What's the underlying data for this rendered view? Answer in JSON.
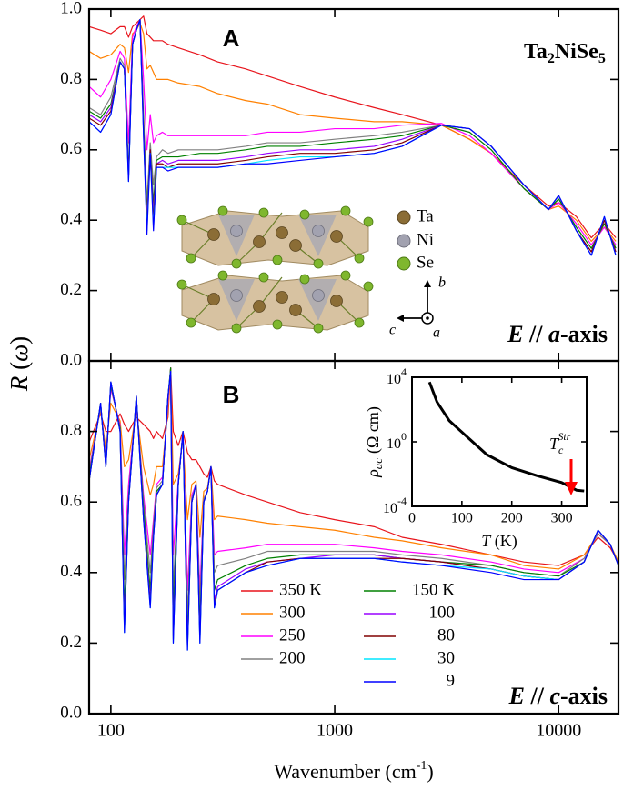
{
  "chart_data": [
    {
      "type": "line",
      "title": "A",
      "compound": [
        "Ta",
        "2",
        "NiSe",
        "5"
      ],
      "annotation": [
        "E",
        " // ",
        "a",
        "-axis"
      ],
      "ylabel": [
        "R",
        " (",
        "ω",
        ")"
      ],
      "structure_legend": [
        "Ta",
        "Ni",
        "Se"
      ],
      "structure_axes": [
        "b",
        "c",
        "a"
      ],
      "xscale": "log",
      "x": [
        80,
        90,
        100,
        110,
        115,
        120,
        125,
        130,
        135,
        140,
        145,
        150,
        155,
        160,
        170,
        180,
        200,
        250,
        300,
        400,
        500,
        700,
        1000,
        1500,
        2000,
        3000,
        4000,
        5000,
        7000,
        9000,
        10000,
        12000,
        14000,
        16000,
        18000
      ],
      "xlim": [
        80,
        18500
      ],
      "xticks": [
        100,
        1000,
        10000
      ],
      "ylim": [
        0,
        1.0
      ],
      "yticks": [
        {
          "value": 0,
          "label": "0.0"
        },
        {
          "value": 0.2,
          "label": "0.2"
        },
        {
          "value": 0.4,
          "label": "0.4"
        },
        {
          "value": 0.6,
          "label": "0.6"
        },
        {
          "value": 0.8,
          "label": "0.8"
        },
        {
          "value": 1.0,
          "label": "1.0"
        }
      ],
      "series": [
        {
          "color": "#e8141c",
          "values": [
            0.95,
            0.94,
            0.93,
            0.95,
            0.95,
            0.92,
            0.95,
            0.96,
            0.97,
            0.98,
            0.93,
            0.92,
            0.91,
            0.91,
            0.91,
            0.9,
            0.89,
            0.87,
            0.85,
            0.83,
            0.81,
            0.78,
            0.75,
            0.72,
            0.7,
            0.67,
            0.63,
            0.59,
            0.5,
            0.44,
            0.45,
            0.41,
            0.35,
            0.39,
            0.35
          ]
        },
        {
          "color": "#ff8000",
          "values": [
            0.88,
            0.86,
            0.87,
            0.9,
            0.89,
            0.82,
            0.93,
            0.94,
            0.96,
            0.93,
            0.83,
            0.84,
            0.82,
            0.8,
            0.8,
            0.8,
            0.79,
            0.78,
            0.76,
            0.74,
            0.73,
            0.7,
            0.69,
            0.68,
            0.68,
            0.67,
            0.63,
            0.59,
            0.49,
            0.43,
            0.44,
            0.4,
            0.34,
            0.38,
            0.34
          ]
        },
        {
          "color": "#ff00ff",
          "values": [
            0.78,
            0.75,
            0.8,
            0.88,
            0.86,
            0.62,
            0.92,
            0.95,
            0.97,
            0.8,
            0.6,
            0.7,
            0.62,
            0.64,
            0.65,
            0.64,
            0.64,
            0.64,
            0.64,
            0.64,
            0.65,
            0.65,
            0.66,
            0.66,
            0.67,
            0.675,
            0.64,
            0.59,
            0.49,
            0.43,
            0.45,
            0.39,
            0.33,
            0.38,
            0.33
          ]
        },
        {
          "color": "#808080",
          "values": [
            0.72,
            0.7,
            0.75,
            0.86,
            0.84,
            0.55,
            0.9,
            0.94,
            0.97,
            0.7,
            0.45,
            0.62,
            0.5,
            0.58,
            0.6,
            0.59,
            0.6,
            0.6,
            0.6,
            0.61,
            0.62,
            0.62,
            0.63,
            0.64,
            0.65,
            0.67,
            0.65,
            0.6,
            0.49,
            0.43,
            0.46,
            0.38,
            0.32,
            0.39,
            0.32
          ]
        },
        {
          "color": "#008000",
          "values": [
            0.71,
            0.69,
            0.73,
            0.85,
            0.83,
            0.53,
            0.9,
            0.94,
            0.97,
            0.68,
            0.42,
            0.6,
            0.45,
            0.57,
            0.58,
            0.58,
            0.58,
            0.59,
            0.59,
            0.6,
            0.61,
            0.61,
            0.62,
            0.63,
            0.64,
            0.67,
            0.65,
            0.6,
            0.49,
            0.43,
            0.46,
            0.38,
            0.32,
            0.39,
            0.32
          ]
        },
        {
          "color": "#9900ff",
          "values": [
            0.7,
            0.68,
            0.72,
            0.85,
            0.83,
            0.52,
            0.9,
            0.94,
            0.97,
            0.66,
            0.4,
            0.6,
            0.42,
            0.56,
            0.57,
            0.56,
            0.57,
            0.57,
            0.57,
            0.58,
            0.59,
            0.6,
            0.6,
            0.61,
            0.63,
            0.67,
            0.66,
            0.61,
            0.5,
            0.43,
            0.47,
            0.37,
            0.31,
            0.4,
            0.31
          ]
        },
        {
          "color": "#800000",
          "values": [
            0.69,
            0.67,
            0.71,
            0.85,
            0.83,
            0.52,
            0.9,
            0.94,
            0.97,
            0.65,
            0.38,
            0.6,
            0.4,
            0.56,
            0.56,
            0.55,
            0.56,
            0.56,
            0.56,
            0.57,
            0.58,
            0.59,
            0.59,
            0.6,
            0.62,
            0.67,
            0.66,
            0.61,
            0.5,
            0.43,
            0.47,
            0.37,
            0.31,
            0.4,
            0.31
          ]
        },
        {
          "color": "#00e5ff",
          "values": [
            0.68,
            0.65,
            0.7,
            0.85,
            0.83,
            0.51,
            0.9,
            0.94,
            0.97,
            0.64,
            0.37,
            0.59,
            0.38,
            0.55,
            0.55,
            0.55,
            0.55,
            0.55,
            0.55,
            0.56,
            0.57,
            0.58,
            0.58,
            0.59,
            0.61,
            0.67,
            0.66,
            0.61,
            0.5,
            0.43,
            0.47,
            0.37,
            0.3,
            0.41,
            0.3
          ]
        },
        {
          "color": "#0000ff",
          "values": [
            0.68,
            0.65,
            0.7,
            0.85,
            0.83,
            0.51,
            0.9,
            0.94,
            0.97,
            0.64,
            0.36,
            0.59,
            0.37,
            0.55,
            0.55,
            0.54,
            0.55,
            0.55,
            0.55,
            0.56,
            0.56,
            0.57,
            0.58,
            0.59,
            0.61,
            0.67,
            0.66,
            0.61,
            0.5,
            0.43,
            0.47,
            0.37,
            0.3,
            0.41,
            0.3
          ]
        }
      ]
    },
    {
      "type": "line",
      "title": "B",
      "annotation": [
        "E",
        " // ",
        "c",
        "-axis"
      ],
      "xlabel": [
        "Wavenumber (cm",
        "-1",
        ")"
      ],
      "xscale": "log",
      "x": [
        80,
        90,
        95,
        100,
        110,
        115,
        120,
        130,
        140,
        150,
        155,
        160,
        170,
        180,
        185,
        190,
        200,
        210,
        220,
        230,
        240,
        250,
        260,
        270,
        280,
        290,
        300,
        400,
        500,
        700,
        1000,
        1500,
        2000,
        3000,
        5000,
        7000,
        10000,
        13000,
        15000,
        17000,
        18500
      ],
      "xlim": [
        80,
        18500
      ],
      "xticks": [
        100,
        1000,
        10000
      ],
      "ylim": [
        0,
        1.0
      ],
      "yticks": [
        {
          "value": 0,
          "label": "0.0"
        },
        {
          "value": 0.2,
          "label": "0.2"
        },
        {
          "value": 0.4,
          "label": "0.4"
        },
        {
          "value": 0.6,
          "label": "0.6"
        },
        {
          "value": 0.8,
          "label": "0.8"
        }
      ],
      "series": [
        {
          "name": "350 K",
          "color": "#e8141c",
          "values": [
            0.77,
            0.85,
            0.8,
            0.8,
            0.85,
            0.82,
            0.8,
            0.84,
            0.82,
            0.8,
            0.78,
            0.8,
            0.78,
            0.84,
            0.98,
            0.8,
            0.76,
            0.8,
            0.74,
            0.72,
            0.72,
            0.7,
            0.68,
            0.67,
            0.7,
            0.66,
            0.65,
            0.62,
            0.6,
            0.57,
            0.55,
            0.53,
            0.5,
            0.48,
            0.45,
            0.43,
            0.42,
            0.45,
            0.5,
            0.47,
            0.43
          ]
        },
        {
          "name": "300",
          "color": "#ff8000",
          "values": [
            0.72,
            0.86,
            0.75,
            0.88,
            0.83,
            0.7,
            0.72,
            0.86,
            0.7,
            0.62,
            0.65,
            0.7,
            0.7,
            0.86,
            0.98,
            0.65,
            0.68,
            0.78,
            0.55,
            0.65,
            0.66,
            0.5,
            0.63,
            0.64,
            0.7,
            0.55,
            0.56,
            0.55,
            0.54,
            0.53,
            0.52,
            0.5,
            0.49,
            0.47,
            0.45,
            0.42,
            0.41,
            0.45,
            0.51,
            0.48,
            0.43
          ]
        },
        {
          "name": "250",
          "color": "#ff00ff",
          "values": [
            0.69,
            0.87,
            0.72,
            0.92,
            0.82,
            0.45,
            0.65,
            0.88,
            0.62,
            0.45,
            0.55,
            0.65,
            0.67,
            0.88,
            0.98,
            0.45,
            0.66,
            0.8,
            0.35,
            0.62,
            0.65,
            0.35,
            0.61,
            0.63,
            0.7,
            0.45,
            0.46,
            0.47,
            0.48,
            0.48,
            0.48,
            0.47,
            0.46,
            0.45,
            0.43,
            0.41,
            0.4,
            0.44,
            0.51,
            0.48,
            0.42
          ]
        },
        {
          "name": "200",
          "color": "#808080",
          "values": [
            0.68,
            0.87,
            0.71,
            0.93,
            0.81,
            0.38,
            0.62,
            0.89,
            0.6,
            0.4,
            0.53,
            0.64,
            0.66,
            0.89,
            0.98,
            0.35,
            0.65,
            0.8,
            0.28,
            0.61,
            0.65,
            0.3,
            0.61,
            0.63,
            0.7,
            0.4,
            0.42,
            0.44,
            0.46,
            0.46,
            0.46,
            0.46,
            0.45,
            0.44,
            0.42,
            0.4,
            0.39,
            0.44,
            0.51,
            0.48,
            0.42
          ]
        },
        {
          "name": "150 K",
          "color": "#008000",
          "values": [
            0.67,
            0.88,
            0.71,
            0.93,
            0.81,
            0.3,
            0.61,
            0.9,
            0.58,
            0.35,
            0.52,
            0.63,
            0.65,
            0.9,
            0.98,
            0.28,
            0.65,
            0.8,
            0.22,
            0.6,
            0.65,
            0.25,
            0.6,
            0.63,
            0.7,
            0.35,
            0.38,
            0.42,
            0.44,
            0.45,
            0.45,
            0.45,
            0.44,
            0.43,
            0.42,
            0.4,
            0.39,
            0.43,
            0.52,
            0.48,
            0.42
          ]
        },
        {
          "name": "100",
          "color": "#9900ff",
          "values": [
            0.66,
            0.88,
            0.7,
            0.94,
            0.8,
            0.25,
            0.6,
            0.9,
            0.56,
            0.32,
            0.51,
            0.62,
            0.65,
            0.9,
            0.97,
            0.22,
            0.65,
            0.8,
            0.2,
            0.6,
            0.65,
            0.22,
            0.6,
            0.63,
            0.7,
            0.32,
            0.36,
            0.41,
            0.43,
            0.44,
            0.45,
            0.45,
            0.44,
            0.43,
            0.41,
            0.39,
            0.38,
            0.43,
            0.52,
            0.48,
            0.42
          ]
        },
        {
          "name": "80",
          "color": "#800000",
          "values": [
            0.66,
            0.88,
            0.7,
            0.94,
            0.8,
            0.24,
            0.6,
            0.9,
            0.55,
            0.31,
            0.5,
            0.62,
            0.65,
            0.9,
            0.97,
            0.21,
            0.65,
            0.8,
            0.19,
            0.6,
            0.65,
            0.21,
            0.6,
            0.63,
            0.7,
            0.31,
            0.35,
            0.4,
            0.43,
            0.44,
            0.44,
            0.44,
            0.44,
            0.43,
            0.41,
            0.39,
            0.38,
            0.43,
            0.52,
            0.48,
            0.42
          ]
        },
        {
          "name": "30",
          "color": "#00e5ff",
          "values": [
            0.66,
            0.88,
            0.7,
            0.94,
            0.8,
            0.23,
            0.6,
            0.9,
            0.55,
            0.3,
            0.5,
            0.62,
            0.65,
            0.9,
            0.97,
            0.2,
            0.65,
            0.8,
            0.18,
            0.6,
            0.65,
            0.2,
            0.6,
            0.63,
            0.7,
            0.3,
            0.35,
            0.4,
            0.42,
            0.44,
            0.44,
            0.44,
            0.43,
            0.42,
            0.41,
            0.39,
            0.38,
            0.43,
            0.52,
            0.48,
            0.42
          ]
        },
        {
          "name": "9",
          "color": "#0000ff",
          "values": [
            0.66,
            0.88,
            0.7,
            0.94,
            0.8,
            0.23,
            0.6,
            0.9,
            0.55,
            0.3,
            0.5,
            0.62,
            0.65,
            0.9,
            0.97,
            0.2,
            0.65,
            0.8,
            0.18,
            0.6,
            0.65,
            0.2,
            0.6,
            0.63,
            0.7,
            0.3,
            0.35,
            0.4,
            0.42,
            0.44,
            0.44,
            0.44,
            0.43,
            0.42,
            0.4,
            0.38,
            0.38,
            0.43,
            0.52,
            0.48,
            0.42
          ]
        }
      ]
    },
    {
      "type": "line",
      "xlabel": [
        "T",
        " (K)"
      ],
      "ylabel": [
        "ρ",
        "ac",
        "(Ω cm)"
      ],
      "annotation": [
        "T",
        "c",
        "Str"
      ],
      "arrow_color": "#ff0000",
      "yscale": "log",
      "x": [
        35,
        50,
        75,
        100,
        125,
        150,
        200,
        250,
        300,
        330,
        345
      ],
      "xlim": [
        0,
        350
      ],
      "xticks": [
        0,
        100,
        200,
        300
      ],
      "ylim": [
        0.0001,
        10000
      ],
      "yticks": [
        {
          "value": 0.0001,
          "label": "10",
          "exponent": "-4"
        },
        {
          "value": 1,
          "label": "10",
          "exponent": "0"
        },
        {
          "value": 10000,
          "label": "10",
          "exponent": "4"
        }
      ],
      "series": [
        {
          "color": "#000000",
          "values": [
            5000,
            300,
            20,
            4,
            0.8,
            0.16,
            0.025,
            0.008,
            0.003,
            0.001,
            0.0009
          ]
        }
      ]
    }
  ]
}
